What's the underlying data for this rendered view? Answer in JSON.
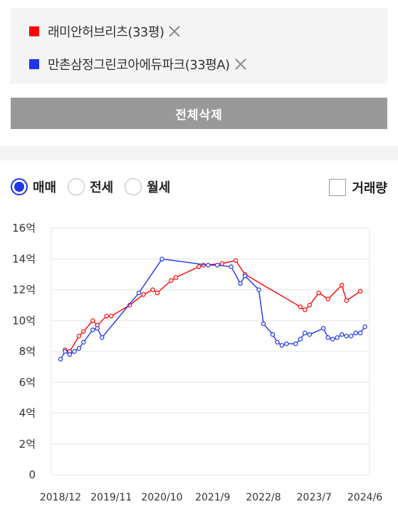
{
  "compare_list": {
    "items": [
      {
        "label": "래미안허브리츠(33평)",
        "color": "#ff0000"
      },
      {
        "label": "만촌삼정그린코아에듀파크(33평A)",
        "color": "#1f35e8"
      }
    ]
  },
  "clear_button": {
    "label": "전체삭제"
  },
  "filters": {
    "trade_types": [
      {
        "label": "매매",
        "checked": true
      },
      {
        "label": "전세",
        "checked": false
      },
      {
        "label": "월세",
        "checked": false
      }
    ],
    "volume": {
      "label": "거래량",
      "checked": false
    }
  },
  "chart_data": {
    "type": "line",
    "grid": true,
    "legend": "none",
    "title": "",
    "xlabel": "",
    "ylabel": "",
    "x_tick_labels": [
      "2018/12",
      "2019/11",
      "2020/10",
      "2021/9",
      "2022/8",
      "2023/7",
      "2024/6"
    ],
    "y_tick_labels": [
      "0",
      "2억",
      "4억",
      "6억",
      "8억",
      "10억",
      "12억",
      "14억",
      "16억"
    ],
    "ylim": [
      0,
      16
    ],
    "xlim": [
      "2018-10",
      "2024-07"
    ],
    "series": [
      {
        "color": "#ff0000",
        "points": [
          [
            "2019-01",
            8.1
          ],
          [
            "2019-02",
            8.0
          ],
          [
            "2019-04",
            9.0
          ],
          [
            "2019-05",
            9.3
          ],
          [
            "2019-07",
            10.0
          ],
          [
            "2019-08",
            9.7
          ],
          [
            "2019-10",
            10.3
          ],
          [
            "2019-11",
            10.3
          ],
          [
            "2020-03",
            11.0
          ],
          [
            "2020-06",
            11.7
          ],
          [
            "2020-08",
            12.0
          ],
          [
            "2020-09",
            11.8
          ],
          [
            "2020-12",
            12.6
          ],
          [
            "2021-01",
            12.8
          ],
          [
            "2021-06",
            13.5
          ],
          [
            "2021-07",
            13.6
          ],
          [
            "2021-11",
            13.7
          ],
          [
            "2022-02",
            13.9
          ],
          [
            "2022-04",
            13.0
          ],
          [
            "2023-04",
            10.9
          ],
          [
            "2023-05",
            10.7
          ],
          [
            "2023-06",
            11.0
          ],
          [
            "2023-08",
            11.8
          ],
          [
            "2023-10",
            11.4
          ],
          [
            "2024-01",
            12.3
          ],
          [
            "2024-02",
            11.3
          ],
          [
            "2024-05",
            11.9
          ]
        ]
      },
      {
        "color": "#1f35e8",
        "points": [
          [
            "2018-12",
            7.5
          ],
          [
            "2019-01",
            8.0
          ],
          [
            "2019-02",
            7.8
          ],
          [
            "2019-03",
            8.0
          ],
          [
            "2019-04",
            8.2
          ],
          [
            "2019-05",
            8.6
          ],
          [
            "2019-07",
            9.4
          ],
          [
            "2019-08",
            9.5
          ],
          [
            "2019-09",
            8.9
          ],
          [
            "2020-05",
            11.8
          ],
          [
            "2020-10",
            14.0
          ],
          [
            "2021-08",
            13.6
          ],
          [
            "2021-10",
            13.6
          ],
          [
            "2022-01",
            13.5
          ],
          [
            "2022-03",
            12.4
          ],
          [
            "2022-04",
            12.9
          ],
          [
            "2022-07",
            12.0
          ],
          [
            "2022-08",
            9.8
          ],
          [
            "2022-10",
            9.1
          ],
          [
            "2022-11",
            8.6
          ],
          [
            "2022-12",
            8.4
          ],
          [
            "2023-01",
            8.5
          ],
          [
            "2023-03",
            8.5
          ],
          [
            "2023-04",
            8.8
          ],
          [
            "2023-05",
            9.2
          ],
          [
            "2023-06",
            9.1
          ],
          [
            "2023-09",
            9.5
          ],
          [
            "2023-10",
            8.9
          ],
          [
            "2023-11",
            8.8
          ],
          [
            "2023-12",
            8.9
          ],
          [
            "2024-01",
            9.1
          ],
          [
            "2024-02",
            9.0
          ],
          [
            "2024-03",
            9.0
          ],
          [
            "2024-04",
            9.2
          ],
          [
            "2024-05",
            9.2
          ],
          [
            "2024-06",
            9.6
          ]
        ]
      }
    ]
  }
}
